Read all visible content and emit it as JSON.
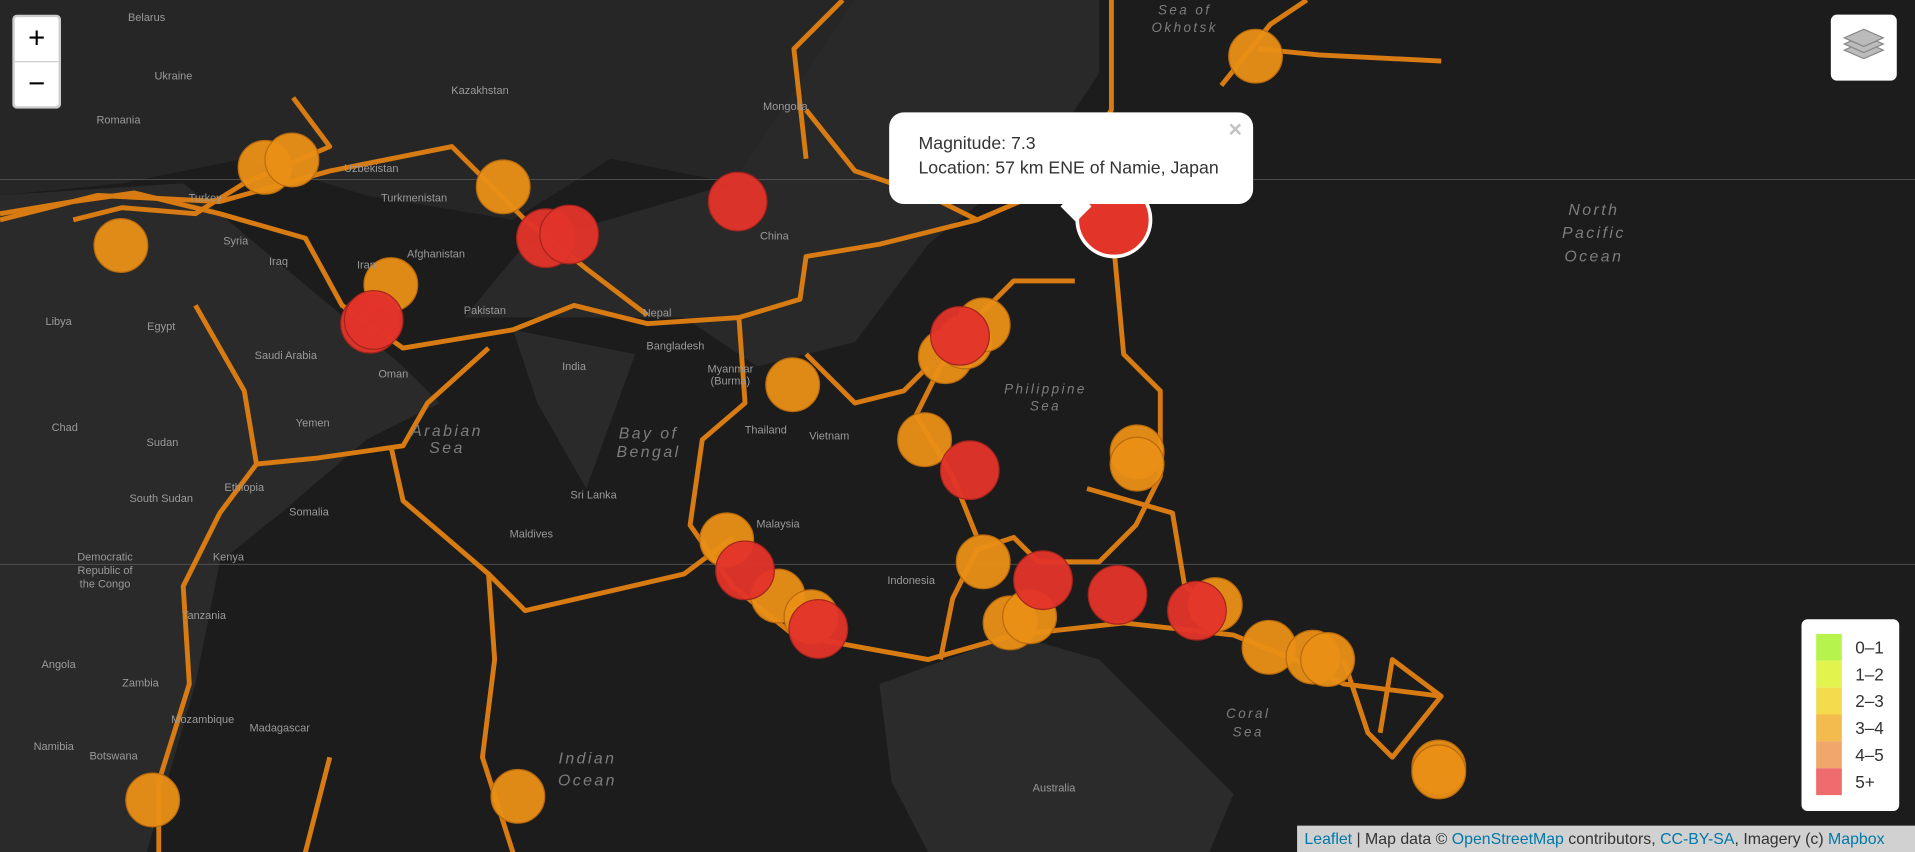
{
  "controls": {
    "zoom_in": "+",
    "zoom_out": "−"
  },
  "popup": {
    "magnitude": "Magnitude: 7.3",
    "location": "Location: 57 km ENE of Namie, Japan",
    "close": "×"
  },
  "legend": {
    "items": [
      {
        "label": "0–1",
        "color": "#b7f34d"
      },
      {
        "label": "1–2",
        "color": "#e1f34d"
      },
      {
        "label": "2–3",
        "color": "#f3db4d"
      },
      {
        "label": "3–4",
        "color": "#f3ba4d"
      },
      {
        "label": "4–5",
        "color": "#f0a76b"
      },
      {
        "label": "5+",
        "color": "#f06b6b"
      }
    ]
  },
  "attribution": [
    "Leaflet",
    " | Map data © ",
    "OpenStreetMap",
    " contributors, ",
    "CC-BY-SA",
    ", Imagery (c) ",
    "Mapbox"
  ],
  "seas": [
    "North",
    "Pacific",
    "Ocean",
    "Arabian",
    "Sea",
    "Bay of",
    "Bengal",
    "Indian",
    "Ocean",
    "Philippine",
    "Sea",
    "Coral",
    "Sea",
    "Sea of",
    "Okhotsk"
  ],
  "places": [
    "Belarus",
    "Ukraine",
    "Romania",
    "Kazakhstan",
    "Mongolia",
    "Uzbekistan",
    "Turkmenistan",
    "Turkey",
    "Syria",
    "Iraq",
    "Iran",
    "Afghanistan",
    "Pakistan",
    "China",
    "Nepal",
    "India",
    "Bangladesh",
    "Myanmar",
    "(Burma)",
    "Thailand",
    "Vietnam",
    "Malaysia",
    "Indonesia",
    "Saudi Arabia",
    "Egypt",
    "Libya",
    "Sudan",
    "Chad",
    "Oman",
    "Yemen",
    "Ethiopia",
    "Somalia",
    "South Sudan",
    "Kenya",
    "Tanzania",
    "Angola",
    "Zambia",
    "Namibia",
    "Botswana",
    "Mozambique",
    "Madagascar",
    "Maldives",
    "Sri Lanka",
    "Australia",
    "Democratic",
    "Republic of",
    "the Congo"
  ]
}
